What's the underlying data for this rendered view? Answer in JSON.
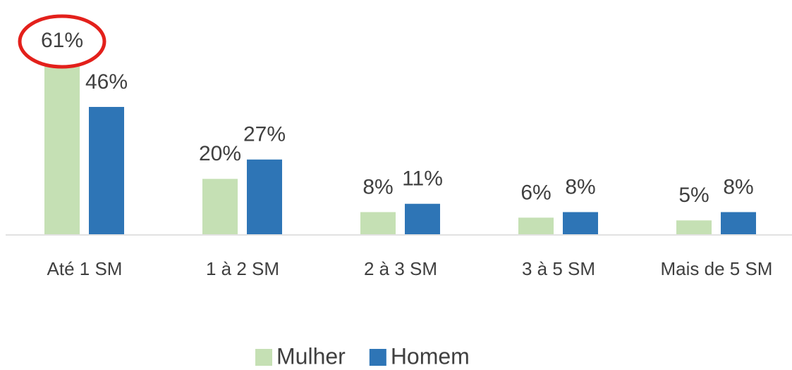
{
  "chart_data": {
    "type": "bar",
    "categories": [
      "Até 1 SM",
      "1 à 2 SM",
      "2 à 3 SM",
      "3 à 5 SM",
      "Mais de 5 SM"
    ],
    "series": [
      {
        "name": "Mulher",
        "color": "#c5e0b4",
        "values": [
          61,
          20,
          8,
          6,
          5
        ],
        "value_labels": [
          "61%",
          "20%",
          "8%",
          "6%",
          "5%"
        ]
      },
      {
        "name": "Homem",
        "color": "#2e75b6",
        "values": [
          46,
          27,
          11,
          8,
          8
        ],
        "value_labels": [
          "46%",
          "27%",
          "11%",
          "8%",
          "8%"
        ]
      }
    ],
    "legend": "bottom"
  }
}
